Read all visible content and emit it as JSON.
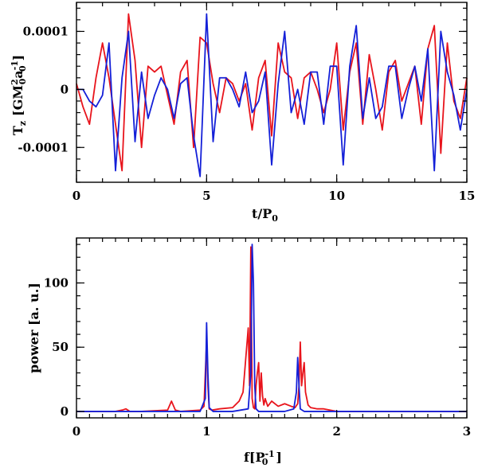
{
  "chart_data": [
    {
      "type": "line",
      "xlabel": "t/P",
      "xlabel_sub": "0",
      "ylabel": "T",
      "ylabel_sub": "z",
      "ylabel_unit_prefix": "[GM",
      "ylabel_unit_sup": "2",
      "ylabel_unit_sub": "0",
      "ylabel_unit_mid": "a",
      "ylabel_unit_sup2": "-1",
      "ylabel_unit_sub2": "0",
      "ylabel_unit_suffix": "]",
      "xlim": [
        0,
        15
      ],
      "ylim": [
        -0.00016,
        0.00015
      ],
      "xticks": [
        0,
        5,
        10,
        15
      ],
      "xtick_labels": [
        "0",
        "5",
        "10",
        "15"
      ],
      "yticks": [
        0.0001,
        0,
        -0.0001
      ],
      "ytick_labels": [
        "0.0001",
        "0",
        "-0.0001"
      ],
      "series": [
        {
          "name": "red",
          "color": "#e8141c",
          "x": [
            0.0,
            0.25,
            0.5,
            0.75,
            1.0,
            1.25,
            1.5,
            1.75,
            2.0,
            2.25,
            2.5,
            2.75,
            3.0,
            3.25,
            3.5,
            3.75,
            4.0,
            4.25,
            4.5,
            4.75,
            5.0,
            5.25,
            5.5,
            5.75,
            6.0,
            6.25,
            6.5,
            6.75,
            7.0,
            7.25,
            7.5,
            7.75,
            8.0,
            8.25,
            8.5,
            8.75,
            9.0,
            9.25,
            9.5,
            9.75,
            10.0,
            10.25,
            10.5,
            10.75,
            11.0,
            11.25,
            11.5,
            11.75,
            12.0,
            12.25,
            12.5,
            12.75,
            13.0,
            13.25,
            13.5,
            13.75,
            14.0,
            14.25,
            14.5,
            14.75,
            15.0
          ],
          "values": [
            1e-05,
            -3e-05,
            -6e-05,
            2e-05,
            8e-05,
            2e-05,
            -6e-05,
            -0.00014,
            0.00013,
            5e-05,
            -0.0001,
            4e-05,
            3e-05,
            4e-05,
            -1e-05,
            -6e-05,
            3e-05,
            5e-05,
            -0.0001,
            9e-05,
            8e-05,
            1e-05,
            -4e-05,
            2e-05,
            1e-05,
            -2e-05,
            1e-05,
            -7e-05,
            2e-05,
            5e-05,
            -8e-05,
            8e-05,
            3e-05,
            2e-05,
            -5e-05,
            2e-05,
            3e-05,
            0.0,
            -4e-05,
            0.0,
            8e-05,
            -7e-05,
            3e-05,
            8e-05,
            -6e-05,
            6e-05,
            0.0,
            -7e-05,
            3e-05,
            5e-05,
            -2e-05,
            1e-05,
            4e-05,
            -6e-05,
            7e-05,
            0.00011,
            -0.00011,
            8e-05,
            -2e-05,
            -5e-05,
            2e-05
          ]
        },
        {
          "name": "blue",
          "color": "#1420d8",
          "x": [
            0.0,
            0.25,
            0.5,
            0.75,
            1.0,
            1.25,
            1.5,
            1.75,
            2.0,
            2.25,
            2.5,
            2.75,
            3.0,
            3.25,
            3.5,
            3.75,
            4.0,
            4.25,
            4.5,
            4.75,
            5.0,
            5.25,
            5.5,
            5.75,
            6.0,
            6.25,
            6.5,
            6.75,
            7.0,
            7.25,
            7.5,
            7.75,
            8.0,
            8.25,
            8.5,
            8.75,
            9.0,
            9.25,
            9.5,
            9.75,
            10.0,
            10.25,
            10.5,
            10.75,
            11.0,
            11.25,
            11.5,
            11.75,
            12.0,
            12.25,
            12.5,
            12.75,
            13.0,
            13.25,
            13.5,
            13.75,
            14.0,
            14.25,
            14.5,
            14.75,
            15.0
          ],
          "values": [
            0.0,
            0.0,
            -2e-05,
            -3e-05,
            -1e-05,
            8e-05,
            -0.00014,
            2e-05,
            0.0001,
            -9e-05,
            3e-05,
            -5e-05,
            -1e-05,
            2e-05,
            0.0,
            -5e-05,
            1e-05,
            2e-05,
            -8e-05,
            -0.00015,
            0.00013,
            -9e-05,
            2e-05,
            2e-05,
            0.0,
            -3e-05,
            3e-05,
            -4e-05,
            -2e-05,
            3e-05,
            -0.00013,
            1e-05,
            0.0001,
            -4e-05,
            0.0,
            -6e-05,
            3e-05,
            3e-05,
            -6e-05,
            4e-05,
            4e-05,
            -0.00013,
            4e-05,
            0.00011,
            -5e-05,
            2e-05,
            -5e-05,
            -3e-05,
            4e-05,
            4e-05,
            -5e-05,
            0.0,
            4e-05,
            -2e-05,
            7e-05,
            -0.00014,
            0.0001,
            3e-05,
            -1e-05,
            -7e-05,
            0.0
          ]
        }
      ]
    },
    {
      "type": "line",
      "xlabel": "f[P",
      "xlabel_sub": "0",
      "xlabel_sup": "-1",
      "xlabel_suffix": "]",
      "ylabel": "power [a. u.]",
      "xlim": [
        0,
        3
      ],
      "ylim": [
        -5,
        135
      ],
      "xticks": [
        0,
        1,
        2,
        3
      ],
      "xtick_labels": [
        "0",
        "1",
        "2",
        "3"
      ],
      "yticks": [
        0,
        50,
        100
      ],
      "ytick_labels": [
        "0",
        "50",
        "100"
      ],
      "series": [
        {
          "name": "red",
          "color": "#e8141c",
          "x": [
            0.0,
            0.3,
            0.35,
            0.38,
            0.41,
            0.5,
            0.7,
            0.73,
            0.76,
            0.8,
            0.95,
            0.98,
            1.0,
            1.01,
            1.02,
            1.04,
            1.1,
            1.2,
            1.25,
            1.28,
            1.3,
            1.32,
            1.33,
            1.34,
            1.35,
            1.36,
            1.37,
            1.38,
            1.39,
            1.4,
            1.41,
            1.42,
            1.43,
            1.44,
            1.45,
            1.47,
            1.5,
            1.55,
            1.6,
            1.65,
            1.68,
            1.7,
            1.71,
            1.72,
            1.73,
            1.74,
            1.75,
            1.76,
            1.78,
            1.8,
            1.85,
            1.9,
            2.0,
            2.3,
            2.6,
            3.0
          ],
          "values": [
            0,
            0,
            1,
            2,
            0,
            0,
            1,
            8,
            1,
            0,
            1,
            4,
            55,
            20,
            2,
            1,
            2,
            3,
            8,
            15,
            40,
            65,
            20,
            128,
            10,
            3,
            2,
            20,
            30,
            38,
            8,
            30,
            12,
            5,
            10,
            4,
            8,
            4,
            6,
            4,
            3,
            6,
            20,
            54,
            20,
            30,
            38,
            15,
            5,
            3,
            2,
            2,
            0,
            0,
            0,
            0
          ]
        },
        {
          "name": "blue",
          "color": "#1420d8",
          "x": [
            0.0,
            0.5,
            0.8,
            0.95,
            0.99,
            1.0,
            1.01,
            1.02,
            1.05,
            1.2,
            1.32,
            1.34,
            1.35,
            1.36,
            1.37,
            1.38,
            1.4,
            1.6,
            1.67,
            1.69,
            1.7,
            1.71,
            1.72,
            1.75,
            2.0,
            2.5,
            3.0
          ],
          "values": [
            0,
            0,
            0,
            0,
            10,
            69,
            30,
            3,
            0,
            0,
            2,
            30,
            130,
            100,
            20,
            2,
            0,
            0,
            2,
            15,
            42,
            20,
            2,
            0,
            0,
            0,
            0
          ]
        }
      ]
    }
  ]
}
